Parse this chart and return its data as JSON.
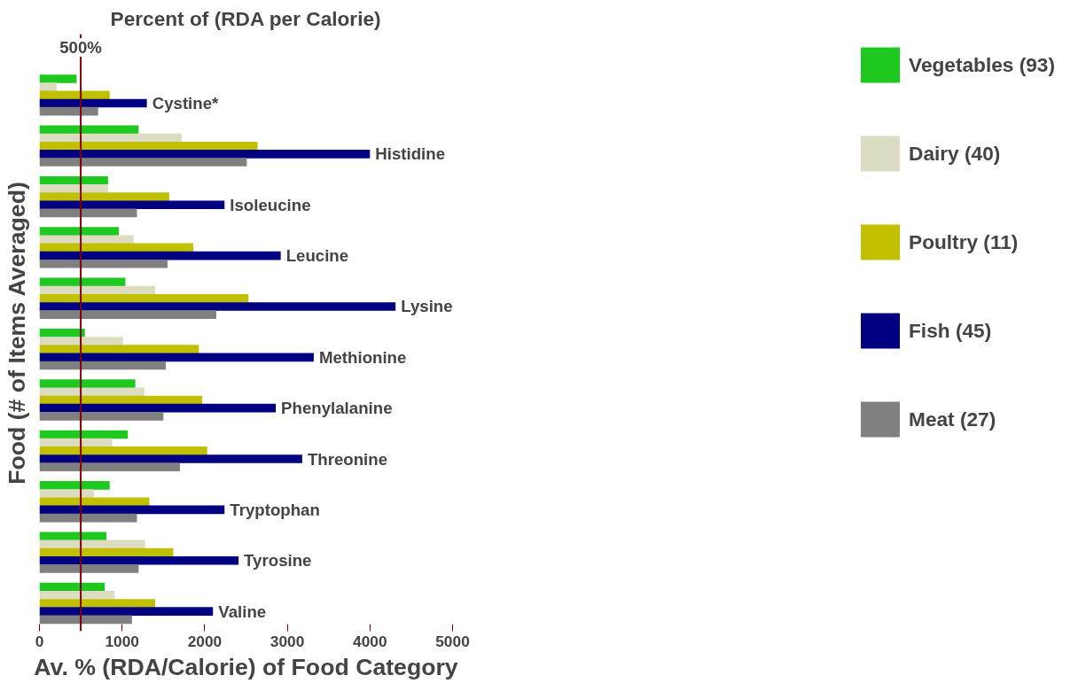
{
  "chart_data": {
    "type": "bar",
    "orientation": "horizontal",
    "subtitle": "Percent of (RDA per Calorie)",
    "xlabel": "Av. % (RDA/Calorie) of Food Category",
    "ylabel": "Food (# of Items Averaged)",
    "categories": [
      "Cystine*",
      "Histidine",
      "Isoleucine",
      "Leucine",
      "Lysine",
      "Methionine",
      "Phenylalanine",
      "Threonine",
      "Tryptophan",
      "Tyrosine",
      "Valine"
    ],
    "series": [
      {
        "name": "Vegetables (93)",
        "color": "#1ec81e",
        "values": [
          450,
          1200,
          830,
          960,
          1040,
          550,
          1160,
          1070,
          850,
          810,
          790
        ]
      },
      {
        "name": "Dairy (40)",
        "color": "#dcdcc0",
        "values": [
          210,
          1720,
          830,
          1140,
          1400,
          1010,
          1270,
          880,
          660,
          1280,
          910
        ]
      },
      {
        "name": "Poultry (11)",
        "color": "#c0c000",
        "values": [
          850,
          2640,
          1570,
          1860,
          2530,
          1930,
          1970,
          2030,
          1330,
          1620,
          1400
        ]
      },
      {
        "name": "Fish (45)",
        "color": "#000080",
        "values": [
          1300,
          4000,
          2240,
          2920,
          4310,
          3320,
          2860,
          3180,
          2240,
          2410,
          2100
        ]
      },
      {
        "name": "Meat (27)",
        "color": "#808080",
        "values": [
          710,
          2510,
          1180,
          1550,
          2140,
          1530,
          1500,
          1700,
          1180,
          1200,
          1120
        ]
      }
    ],
    "xlim": [
      0,
      5000
    ],
    "xticks": [
      0,
      1000,
      2000,
      3000,
      4000,
      5000
    ],
    "grid": false,
    "legend": "right",
    "ref_lines": [
      {
        "axis": "x",
        "value": 500,
        "label": "500%",
        "color": "#800000"
      }
    ]
  }
}
